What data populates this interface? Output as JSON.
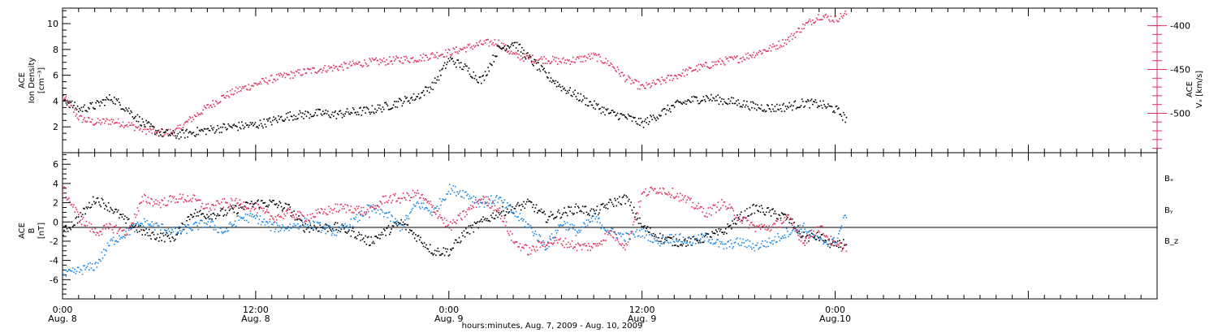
{
  "colors": {
    "density": "#000000",
    "velocity": "#e0335e",
    "bx": "#000000",
    "by": "#1e88e5",
    "bz": "#e0335e"
  },
  "panels": {
    "top": {
      "left_ylabel": [
        "ACE",
        "Ion Density",
        "[cm⁻³]"
      ],
      "right_ylabel": [
        "ACE",
        "Vₓ [km/s]"
      ],
      "left_ticks": [
        2,
        4,
        6,
        8,
        10
      ],
      "left_tick_labels": [
        "2",
        "4",
        "6",
        "8",
        "10"
      ],
      "right_ticks": [
        -400,
        -450,
        -500
      ],
      "right_tick_labels": [
        "-400",
        "-450",
        "-500"
      ]
    },
    "bottom": {
      "ylabel": [
        "ACE",
        "B",
        "[nT]"
      ],
      "ticks": [
        -6,
        -4,
        -2,
        0,
        2,
        4,
        6
      ],
      "tick_labels": [
        "-6",
        "-4",
        "-2",
        "0",
        "2",
        "4",
        "6"
      ],
      "legend": [
        "Bₓ",
        "Bᵧ",
        "B_z"
      ]
    }
  },
  "xaxis": {
    "time_labels": [
      "0:00",
      "12:00",
      "0:00",
      "12:00",
      "0:00"
    ],
    "date_labels": [
      "Aug. 8",
      "Aug. 8",
      "Aug. 9",
      "Aug. 9",
      "Aug.10"
    ],
    "title": "hours:minutes, Aug.  7, 2009 - Aug. 10, 2009"
  },
  "chart_data": [
    {
      "type": "scatter",
      "name": "top",
      "x_range_hours": [
        0,
        68
      ],
      "x_ticks_hours": [
        0,
        12,
        24,
        36,
        48
      ],
      "ylim": [
        0,
        11.2
      ],
      "ylim_right": [
        -545,
        -380
      ],
      "series": [
        {
          "name": "ACE Ion Density",
          "axis": "left",
          "points": [
            [
              0,
              4.2
            ],
            [
              1,
              3.4
            ],
            [
              2,
              3.7
            ],
            [
              3,
              4.3
            ],
            [
              4,
              3.4
            ],
            [
              5,
              2.3
            ],
            [
              6,
              1.6
            ],
            [
              7,
              1.4
            ],
            [
              8,
              1.6
            ],
            [
              9,
              1.8
            ],
            [
              10,
              2.0
            ],
            [
              11,
              2.1
            ],
            [
              12,
              2.2
            ],
            [
              13,
              2.5
            ],
            [
              14,
              2.9
            ],
            [
              15,
              3.0
            ],
            [
              16,
              3.1
            ],
            [
              17,
              3.0
            ],
            [
              18,
              3.2
            ],
            [
              19,
              3.3
            ],
            [
              20,
              3.6
            ],
            [
              21,
              4.0
            ],
            [
              22,
              4.4
            ],
            [
              23,
              5.3
            ],
            [
              24,
              7.3
            ],
            [
              25,
              6.6
            ],
            [
              26,
              5.6
            ],
            [
              27,
              8.0
            ],
            [
              28,
              8.6
            ],
            [
              29,
              7.3
            ],
            [
              30,
              6.1
            ],
            [
              31,
              5.1
            ],
            [
              32,
              4.4
            ],
            [
              33,
              3.7
            ],
            [
              34,
              3.1
            ],
            [
              35,
              2.8
            ],
            [
              36,
              2.3
            ],
            [
              37,
              3.0
            ],
            [
              38,
              3.7
            ],
            [
              39,
              4.1
            ],
            [
              40,
              4.3
            ],
            [
              41,
              4.1
            ],
            [
              42,
              3.9
            ],
            [
              43,
              3.6
            ],
            [
              44,
              3.5
            ],
            [
              45,
              3.6
            ],
            [
              46,
              3.9
            ],
            [
              47,
              3.8
            ],
            [
              48,
              3.4
            ],
            [
              48.7,
              2.6
            ]
          ]
        },
        {
          "name": "ACE Vx",
          "axis": "right",
          "points": [
            [
              0,
              -480
            ],
            [
              1,
              -505
            ],
            [
              2,
              -510
            ],
            [
              3,
              -508
            ],
            [
              4,
              -512
            ],
            [
              5,
              -518
            ],
            [
              6,
              -522
            ],
            [
              7,
              -520
            ],
            [
              8,
              -505
            ],
            [
              9,
              -492
            ],
            [
              10,
              -480
            ],
            [
              11,
              -472
            ],
            [
              12,
              -466
            ],
            [
              13,
              -460
            ],
            [
              14,
              -456
            ],
            [
              15,
              -452
            ],
            [
              16,
              -449
            ],
            [
              17,
              -447
            ],
            [
              18,
              -444
            ],
            [
              19,
              -441
            ],
            [
              20,
              -440
            ],
            [
              21,
              -438
            ],
            [
              22,
              -437
            ],
            [
              23,
              -433
            ],
            [
              24,
              -430
            ],
            [
              25,
              -425
            ],
            [
              26,
              -420
            ],
            [
              27,
              -418
            ],
            [
              28,
              -433
            ],
            [
              29,
              -437
            ],
            [
              30,
              -438
            ],
            [
              31,
              -440
            ],
            [
              32,
              -438
            ],
            [
              33,
              -434
            ],
            [
              34,
              -443
            ],
            [
              35,
              -460
            ],
            [
              36,
              -470
            ],
            [
              37,
              -464
            ],
            [
              38,
              -457
            ],
            [
              39,
              -450
            ],
            [
              40,
              -445
            ],
            [
              41,
              -440
            ],
            [
              42,
              -437
            ],
            [
              43,
              -431
            ],
            [
              44,
              -425
            ],
            [
              45,
              -416
            ],
            [
              46,
              -400
            ],
            [
              47,
              -388
            ],
            [
              48,
              -392
            ],
            [
              48.7,
              -385
            ]
          ]
        }
      ]
    },
    {
      "type": "scatter",
      "name": "bottom",
      "x_range_hours": [
        0,
        68
      ],
      "x_ticks_hours": [
        0,
        12,
        24,
        36,
        48
      ],
      "ylim": [
        -8,
        7.2
      ],
      "series": [
        {
          "name": "Bx",
          "points": [
            [
              0,
              -1.0
            ],
            [
              1,
              0.5
            ],
            [
              2,
              2.5
            ],
            [
              3,
              1.5
            ],
            [
              4,
              0.0
            ],
            [
              5,
              -1.0
            ],
            [
              6,
              -1.5
            ],
            [
              7,
              -1.5
            ],
            [
              8,
              1.0
            ],
            [
              9,
              0.8
            ],
            [
              10,
              1.0
            ],
            [
              11,
              1.5
            ],
            [
              12,
              2.0
            ],
            [
              13,
              2.0
            ],
            [
              14,
              1.5
            ],
            [
              15,
              -0.5
            ],
            [
              16,
              -0.5
            ],
            [
              17,
              -0.5
            ],
            [
              18,
              -1.0
            ],
            [
              19,
              -2.0
            ],
            [
              20,
              -1.0
            ],
            [
              21,
              0.0
            ],
            [
              22,
              -1.5
            ],
            [
              23,
              -3.0
            ],
            [
              24,
              -3.0
            ],
            [
              25,
              -1.0
            ],
            [
              26,
              0.0
            ],
            [
              27,
              1.0
            ],
            [
              28,
              1.5
            ],
            [
              29,
              2.0
            ],
            [
              30,
              0.5
            ],
            [
              31,
              1.0
            ],
            [
              32,
              1.5
            ],
            [
              33,
              1.0
            ],
            [
              34,
              2.0
            ],
            [
              35,
              2.5
            ],
            [
              36,
              -0.5
            ],
            [
              37,
              -1.5
            ],
            [
              38,
              -2.0
            ],
            [
              39,
              -2.0
            ],
            [
              40,
              -1.5
            ],
            [
              41,
              -1.0
            ],
            [
              42,
              0.5
            ],
            [
              43,
              1.5
            ],
            [
              44,
              1.0
            ],
            [
              45,
              0.5
            ],
            [
              46,
              -1.5
            ],
            [
              47,
              -1.5
            ],
            [
              48,
              -2.5
            ],
            [
              48.7,
              -2.0
            ]
          ]
        },
        {
          "name": "By",
          "points": [
            [
              0,
              -5.5
            ],
            [
              1,
              -5.0
            ],
            [
              2,
              -4.5
            ],
            [
              3,
              -2.0
            ],
            [
              4,
              -1.0
            ],
            [
              5,
              0.0
            ],
            [
              6,
              -0.5
            ],
            [
              7,
              -1.0
            ],
            [
              8,
              -0.5
            ],
            [
              9,
              0.0
            ],
            [
              10,
              -1.0
            ],
            [
              11,
              0.5
            ],
            [
              12,
              0.5
            ],
            [
              13,
              -0.5
            ],
            [
              14,
              -0.5
            ],
            [
              15,
              0.0
            ],
            [
              16,
              -0.5
            ],
            [
              17,
              -1.0
            ],
            [
              18,
              0.0
            ],
            [
              19,
              1.5
            ],
            [
              20,
              1.0
            ],
            [
              21,
              -0.5
            ],
            [
              22,
              2.0
            ],
            [
              23,
              1.0
            ],
            [
              24,
              3.5
            ],
            [
              25,
              3.0
            ],
            [
              26,
              2.0
            ],
            [
              27,
              2.5
            ],
            [
              28,
              1.0
            ],
            [
              29,
              -0.5
            ],
            [
              30,
              -2.5
            ],
            [
              31,
              0.0
            ],
            [
              32,
              -1.0
            ],
            [
              33,
              0.5
            ],
            [
              34,
              -1.0
            ],
            [
              35,
              -1.5
            ],
            [
              36,
              -1.0
            ],
            [
              37,
              -2.0
            ],
            [
              38,
              -1.5
            ],
            [
              39,
              -2.0
            ],
            [
              40,
              -1.5
            ],
            [
              41,
              -2.5
            ],
            [
              42,
              -2.0
            ],
            [
              43,
              -2.5
            ],
            [
              44,
              -2.0
            ],
            [
              45,
              -1.0
            ],
            [
              46,
              -0.5
            ],
            [
              47,
              -2.0
            ],
            [
              48,
              -2.0
            ],
            [
              48.7,
              1.0
            ]
          ]
        },
        {
          "name": "Bz",
          "points": [
            [
              0,
              3.5
            ],
            [
              1,
              0.5
            ],
            [
              2,
              -1.0
            ],
            [
              3,
              -0.5
            ],
            [
              4,
              -1.0
            ],
            [
              5,
              2.5
            ],
            [
              6,
              2.0
            ],
            [
              7,
              2.5
            ],
            [
              8,
              2.5
            ],
            [
              9,
              1.5
            ],
            [
              10,
              2.0
            ],
            [
              11,
              2.0
            ],
            [
              12,
              1.5
            ],
            [
              13,
              0.5
            ],
            [
              14,
              1.0
            ],
            [
              15,
              0.5
            ],
            [
              16,
              1.0
            ],
            [
              17,
              1.5
            ],
            [
              18,
              1.5
            ],
            [
              19,
              1.0
            ],
            [
              20,
              2.5
            ],
            [
              21,
              2.5
            ],
            [
              22,
              3.0
            ],
            [
              23,
              1.5
            ],
            [
              24,
              -0.5
            ],
            [
              25,
              1.0
            ],
            [
              26,
              2.5
            ],
            [
              27,
              1.5
            ],
            [
              28,
              -2.0
            ],
            [
              29,
              -3.0
            ],
            [
              30,
              -2.0
            ],
            [
              31,
              -2.0
            ],
            [
              32,
              -2.5
            ],
            [
              33,
              -2.5
            ],
            [
              34,
              -1.0
            ],
            [
              35,
              -2.5
            ],
            [
              36,
              3.0
            ],
            [
              37,
              3.5
            ],
            [
              38,
              3.0
            ],
            [
              39,
              2.0
            ],
            [
              40,
              1.0
            ],
            [
              41,
              2.0
            ],
            [
              42,
              0.5
            ],
            [
              43,
              -0.5
            ],
            [
              44,
              -0.5
            ],
            [
              45,
              0.5
            ],
            [
              46,
              -2.0
            ],
            [
              47,
              -0.5
            ],
            [
              48,
              -2.5
            ],
            [
              48.7,
              -2.5
            ]
          ]
        }
      ]
    }
  ]
}
